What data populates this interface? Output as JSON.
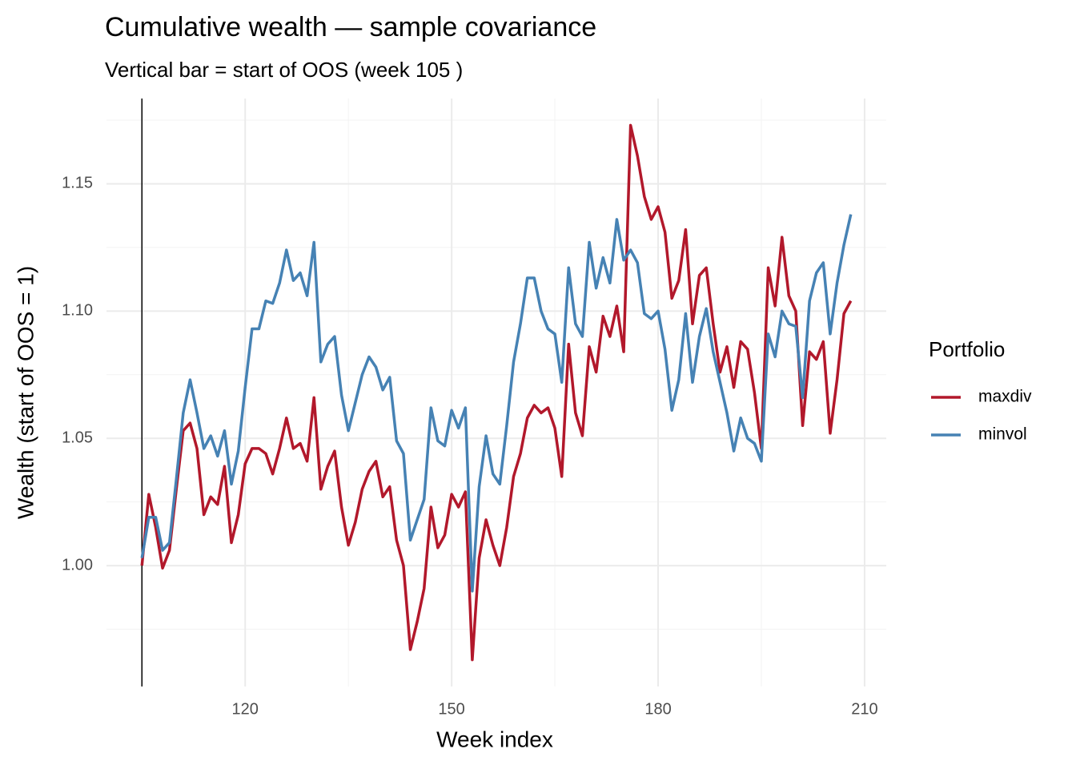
{
  "chart_data": {
    "type": "line",
    "title": "Cumulative wealth — sample covariance",
    "subtitle": "Vertical bar = start of OOS (week 105 )",
    "x_label": "Week index",
    "y_label": "Wealth (start of OOS = 1)",
    "legend_title": "Portfolio",
    "legend_position": "right",
    "vline": 105,
    "x": [
      105,
      106,
      107,
      108,
      109,
      110,
      111,
      112,
      113,
      114,
      115,
      116,
      117,
      118,
      119,
      120,
      121,
      122,
      123,
      124,
      125,
      126,
      127,
      128,
      129,
      130,
      131,
      132,
      133,
      134,
      135,
      136,
      137,
      138,
      139,
      140,
      141,
      142,
      143,
      144,
      145,
      146,
      147,
      148,
      149,
      150,
      151,
      152,
      153,
      154,
      155,
      156,
      157,
      158,
      159,
      160,
      161,
      162,
      163,
      164,
      165,
      166,
      167,
      168,
      169,
      170,
      171,
      172,
      173,
      174,
      175,
      176,
      177,
      178,
      179,
      180,
      181,
      182,
      183,
      184,
      185,
      186,
      187,
      188,
      189,
      190,
      191,
      192,
      193,
      194,
      195,
      196,
      197,
      198,
      199,
      200,
      201,
      202,
      203,
      204,
      205,
      206,
      207,
      208
    ],
    "series": [
      {
        "name": "maxdiv",
        "color": "#b2182b",
        "values": [
          1.0,
          1.028,
          1.015,
          0.999,
          1.006,
          1.03,
          1.053,
          1.056,
          1.046,
          1.02,
          1.027,
          1.024,
          1.039,
          1.009,
          1.02,
          1.04,
          1.046,
          1.046,
          1.044,
          1.036,
          1.046,
          1.058,
          1.046,
          1.048,
          1.041,
          1.066,
          1.03,
          1.039,
          1.045,
          1.023,
          1.008,
          1.017,
          1.03,
          1.037,
          1.041,
          1.027,
          1.031,
          1.01,
          1.0,
          0.967,
          0.978,
          0.991,
          1.023,
          1.007,
          1.012,
          1.028,
          1.023,
          1.029,
          0.963,
          1.003,
          1.018,
          1.008,
          1.0,
          1.015,
          1.035,
          1.044,
          1.058,
          1.063,
          1.06,
          1.062,
          1.054,
          1.035,
          1.087,
          1.06,
          1.051,
          1.086,
          1.076,
          1.098,
          1.09,
          1.102,
          1.084,
          1.173,
          1.161,
          1.145,
          1.136,
          1.141,
          1.131,
          1.105,
          1.112,
          1.132,
          1.095,
          1.114,
          1.117,
          1.095,
          1.076,
          1.086,
          1.07,
          1.088,
          1.085,
          1.068,
          1.046,
          1.117,
          1.102,
          1.129,
          1.106,
          1.1,
          1.055,
          1.084,
          1.081,
          1.088,
          1.052,
          1.073,
          1.099,
          1.104
        ]
      },
      {
        "name": "minvol",
        "color": "#4682b4",
        "values": [
          1.003,
          1.019,
          1.019,
          1.006,
          1.009,
          1.034,
          1.06,
          1.073,
          1.06,
          1.046,
          1.051,
          1.043,
          1.053,
          1.032,
          1.045,
          1.07,
          1.093,
          1.093,
          1.104,
          1.103,
          1.111,
          1.124,
          1.112,
          1.115,
          1.106,
          1.127,
          1.08,
          1.087,
          1.09,
          1.067,
          1.053,
          1.064,
          1.075,
          1.082,
          1.078,
          1.069,
          1.074,
          1.049,
          1.044,
          1.01,
          1.018,
          1.026,
          1.062,
          1.049,
          1.047,
          1.061,
          1.054,
          1.062,
          0.99,
          1.031,
          1.051,
          1.036,
          1.032,
          1.055,
          1.08,
          1.095,
          1.113,
          1.113,
          1.1,
          1.093,
          1.091,
          1.072,
          1.117,
          1.095,
          1.09,
          1.127,
          1.109,
          1.121,
          1.111,
          1.136,
          1.12,
          1.124,
          1.119,
          1.099,
          1.097,
          1.1,
          1.085,
          1.061,
          1.073,
          1.099,
          1.072,
          1.09,
          1.101,
          1.084,
          1.072,
          1.06,
          1.045,
          1.058,
          1.05,
          1.048,
          1.041,
          1.091,
          1.082,
          1.1,
          1.095,
          1.094,
          1.066,
          1.104,
          1.115,
          1.119,
          1.091,
          1.111,
          1.126,
          1.138
        ]
      }
    ],
    "xlim": [
      99.85,
      213.15
    ],
    "ylim": [
      0.9525,
      1.1835
    ],
    "xticks": [
      120,
      150,
      180,
      210
    ],
    "yticks": [
      {
        "value": 1,
        "label": "1.00"
      },
      1.05,
      {
        "value": 1.1,
        "label": "1.10"
      },
      1.15
    ],
    "xminor": [
      105,
      135,
      165,
      195
    ],
    "yminor": [
      0.975,
      1.025,
      1.075,
      1.125,
      1.175
    ],
    "grid": true
  }
}
